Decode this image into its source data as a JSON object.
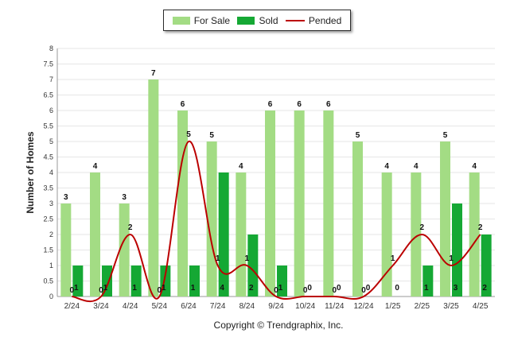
{
  "colors": {
    "for_sale": "#a3dc84",
    "sold": "#15a834",
    "pended": "#bb0000",
    "grid": "#e6e6e6",
    "axis": "#999999",
    "text": "#222222"
  },
  "legend": {
    "for_sale": "For Sale",
    "sold": "Sold",
    "pended": "Pended"
  },
  "footer": "Copyright © Trendgraphix, Inc.",
  "chart_data": {
    "type": "bar",
    "ylabel": "Number of Homes",
    "xlabel": "",
    "ylim": [
      0,
      8
    ],
    "yticks": [
      "0",
      "0.5",
      "1",
      "1.5",
      "2",
      "2.5",
      "3",
      "3.5",
      "4",
      "4.5",
      "5",
      "5.5",
      "6",
      "6.5",
      "7",
      "7.5",
      "8"
    ],
    "categories": [
      "2/24",
      "3/24",
      "4/24",
      "5/24",
      "6/24",
      "7/24",
      "8/24",
      "9/24",
      "10/24",
      "11/24",
      "12/24",
      "1/25",
      "2/25",
      "3/25",
      "4/25"
    ],
    "series": [
      {
        "name": "For Sale",
        "type": "bar",
        "values": [
          3,
          4,
          3,
          7,
          6,
          5,
          4,
          6,
          6,
          6,
          5,
          4,
          4,
          5,
          4
        ]
      },
      {
        "name": "Sold",
        "type": "bar",
        "values": [
          1,
          1,
          1,
          1,
          1,
          4,
          2,
          1,
          0,
          0,
          0,
          0,
          1,
          3,
          2
        ]
      },
      {
        "name": "Pended",
        "type": "line",
        "values": [
          0,
          0,
          2,
          0,
          5,
          1,
          1,
          0,
          0,
          0,
          0,
          1,
          2,
          1,
          2
        ]
      }
    ],
    "grid": true,
    "legend_position": "top-center"
  }
}
